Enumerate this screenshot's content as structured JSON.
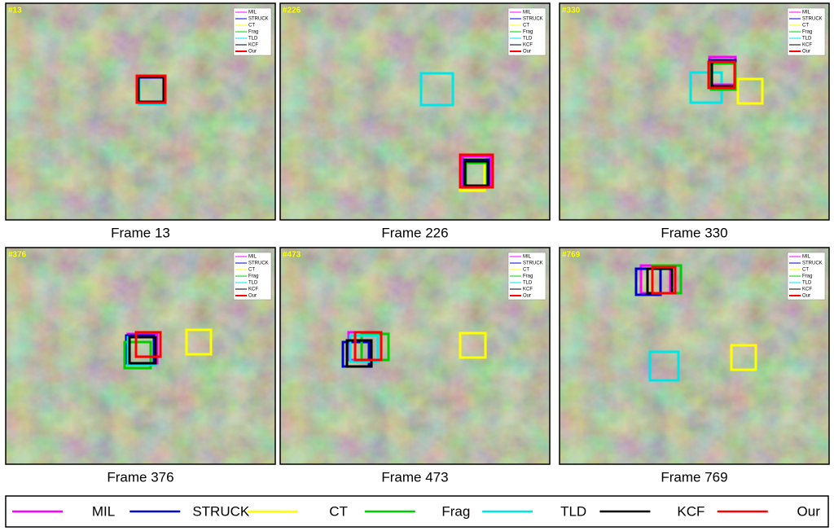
{
  "panels": [
    {
      "tag": "#13",
      "caption": "Frame 13"
    },
    {
      "tag": "#226",
      "caption": "Frame 226"
    },
    {
      "tag": "#330",
      "caption": "Frame 330"
    },
    {
      "tag": "#376",
      "caption": "Frame 376"
    },
    {
      "tag": "#473",
      "caption": "Frame 473"
    },
    {
      "tag": "#769",
      "caption": "Frame 769"
    }
  ],
  "legend": [
    {
      "name": "MIL",
      "color": "#ff00ff"
    },
    {
      "name": "STRUCK",
      "color": "#0000cc"
    },
    {
      "name": "CT",
      "color": "#ffff00"
    },
    {
      "name": "Frag",
      "color": "#00cc00"
    },
    {
      "name": "TLD",
      "color": "#00e5e5"
    },
    {
      "name": "KCF",
      "color": "#000000"
    },
    {
      "name": "Our",
      "color": "#ff0000"
    }
  ]
}
